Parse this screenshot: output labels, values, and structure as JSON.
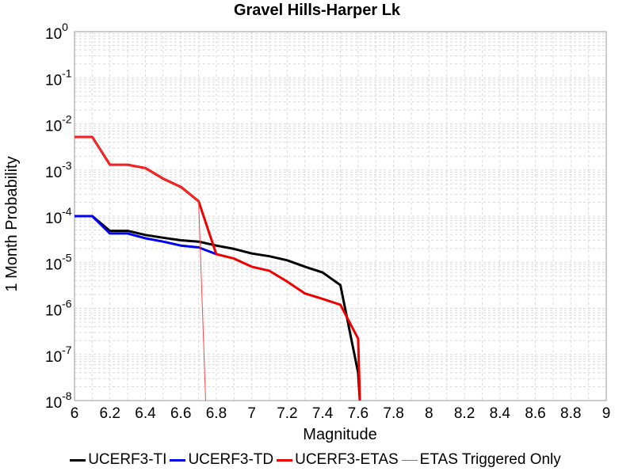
{
  "chart_data": {
    "type": "line",
    "title": "Gravel Hills-Harper Lk",
    "xlabel": "Magnitude",
    "ylabel": "1 Month Probability",
    "xlim": [
      6,
      9
    ],
    "ylim": [
      1e-08,
      1
    ],
    "yscale": "log",
    "grid": true,
    "legend_position": "bottom",
    "x_ticks": [
      "6",
      "6.2",
      "6.4",
      "6.6",
      "6.8",
      "7",
      "7.2",
      "7.4",
      "7.6",
      "7.8",
      "8",
      "8.2",
      "8.4",
      "8.6",
      "8.8",
      "9"
    ],
    "y_ticks": [
      {
        "base": "10",
        "exp": "0"
      },
      {
        "base": "10",
        "exp": "-1"
      },
      {
        "base": "10",
        "exp": "-2"
      },
      {
        "base": "10",
        "exp": "-3"
      },
      {
        "base": "10",
        "exp": "-4"
      },
      {
        "base": "10",
        "exp": "-5"
      },
      {
        "base": "10",
        "exp": "-6"
      },
      {
        "base": "10",
        "exp": "-7"
      },
      {
        "base": "10",
        "exp": "-8"
      }
    ],
    "series": [
      {
        "name": "UCERF3-TI",
        "color": "#000000",
        "width": 3,
        "x": [
          6.0,
          6.1,
          6.2,
          6.3,
          6.4,
          6.5,
          6.6,
          6.7,
          6.8,
          6.9,
          7.0,
          7.1,
          7.2,
          7.3,
          7.4,
          7.5,
          7.6,
          7.61
        ],
        "y": [
          0.0001,
          0.0001,
          4.8e-05,
          4.8e-05,
          3.9e-05,
          3.4e-05,
          3e-05,
          2.8e-05,
          2.3e-05,
          1.95e-05,
          1.55e-05,
          1.35e-05,
          1.1e-05,
          8e-06,
          6e-06,
          3.2e-06,
          4e-08,
          1e-08
        ]
      },
      {
        "name": "UCERF3-TD",
        "color": "#0000ee",
        "width": 3,
        "x": [
          6.0,
          6.1,
          6.2,
          6.3,
          6.4,
          6.5,
          6.6,
          6.7,
          6.8
        ],
        "y": [
          0.0001,
          0.0001,
          4.2e-05,
          4.2e-05,
          3.3e-05,
          2.8e-05,
          2.3e-05,
          2.1e-05,
          1.5e-05
        ]
      },
      {
        "name": "UCERF3-ETAS",
        "color": "#ee0000",
        "width": 3,
        "x": [
          6.0,
          6.1,
          6.2,
          6.3,
          6.4,
          6.5,
          6.6,
          6.7,
          6.8,
          6.9,
          7.0,
          7.1,
          7.2,
          7.3,
          7.4,
          7.5,
          7.6,
          7.61
        ],
        "y": [
          0.0052,
          0.0052,
          0.0013,
          0.0013,
          0.0011,
          0.00065,
          0.00043,
          0.00021,
          1.5e-05,
          1.2e-05,
          8e-06,
          6.5e-06,
          3.8e-06,
          2.1e-06,
          1.6e-06,
          1.2e-06,
          2.2e-07,
          1e-08
        ]
      },
      {
        "name": "ETAS Triggered Only",
        "color": "#ff4444",
        "width": 1,
        "x": [
          6.0,
          6.1,
          6.2,
          6.3,
          6.4,
          6.5,
          6.6,
          6.7,
          6.74
        ],
        "y": [
          0.0052,
          0.0052,
          0.0013,
          0.0013,
          0.0011,
          0.00065,
          0.00043,
          0.00021,
          1e-08
        ]
      }
    ]
  }
}
